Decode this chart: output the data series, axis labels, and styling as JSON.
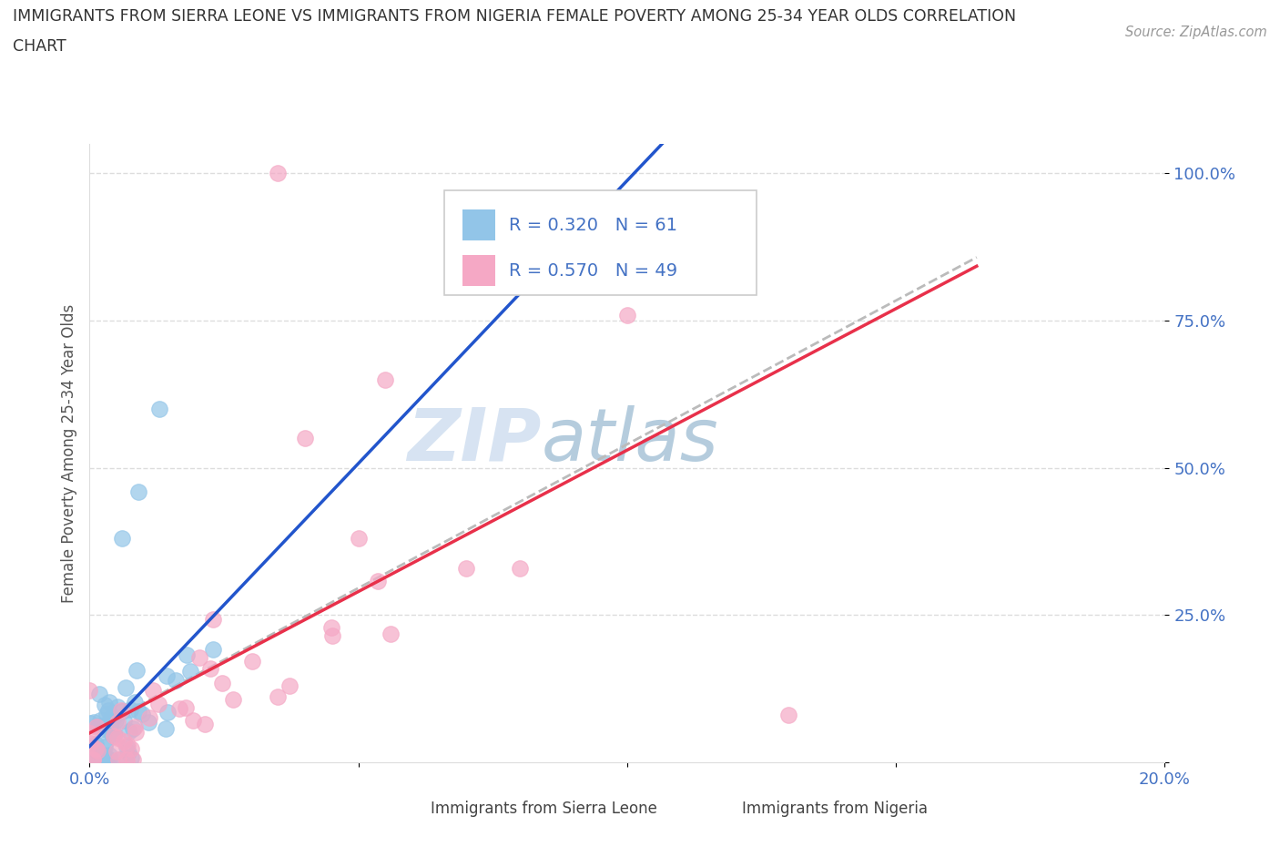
{
  "title_line1": "IMMIGRANTS FROM SIERRA LEONE VS IMMIGRANTS FROM NIGERIA FEMALE POVERTY AMONG 25-34 YEAR OLDS CORRELATION",
  "title_line2": "CHART",
  "source": "Source: ZipAtlas.com",
  "ylabel": "Female Poverty Among 25-34 Year Olds",
  "xlim": [
    0.0,
    0.2
  ],
  "ylim": [
    0.0,
    1.05
  ],
  "sierra_leone_R": 0.32,
  "sierra_leone_N": 61,
  "nigeria_R": 0.57,
  "nigeria_N": 49,
  "sierra_leone_color": "#92C5E8",
  "nigeria_color": "#F5A8C5",
  "sierra_leone_line_color": "#2255CC",
  "nigeria_line_color": "#E8304A",
  "trend_line_color": "#BBBBBB",
  "background_color": "#FFFFFF",
  "watermark_color": "#C5D8EC",
  "tick_color": "#4472C4",
  "label_color": "#555555",
  "legend_border_color": "#CCCCCC",
  "grid_color": "#DDDDDD"
}
